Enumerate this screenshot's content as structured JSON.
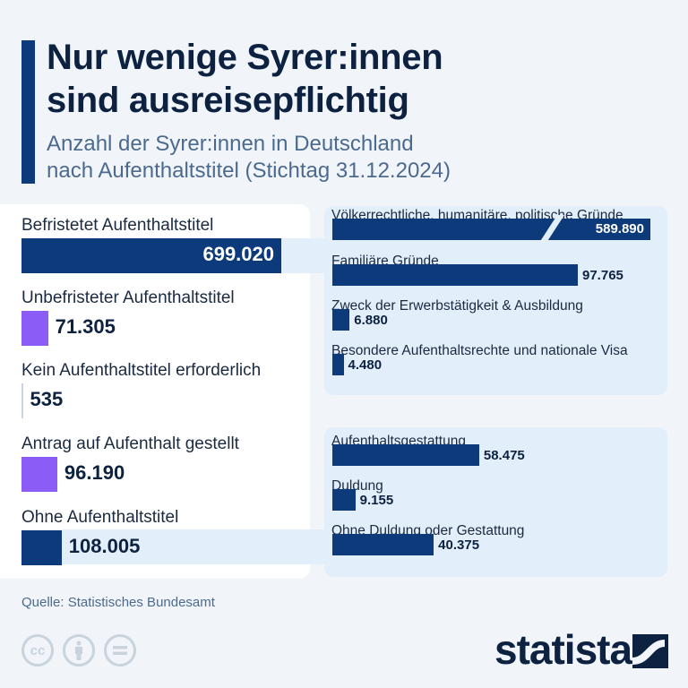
{
  "header": {
    "title_line1": "Nur wenige Syrer:innen",
    "title_line2": "sind ausreisepflichtig",
    "subtitle_line1": "Anzahl der Syrer:innen in Deutschland",
    "subtitle_line2": "nach Aufenthaltstitel (Stichtag 31.12.2024)"
  },
  "chart_data": {
    "type": "bar",
    "main": [
      {
        "label": "Befristetet Aufenthaltstitel",
        "value": 699020,
        "display": "699.020",
        "color": "#0d3a7a"
      },
      {
        "label": "Unbefristeter Aufenthaltstitel",
        "value": 71305,
        "display": "71.305",
        "color": "#8b5cf6"
      },
      {
        "label": "Kein Aufenthaltstitel erforderlich",
        "value": 535,
        "display": "535",
        "color": "#c8d4e6"
      },
      {
        "label": "Antrag auf Aufenthalt gestellt",
        "value": 96190,
        "display": "96.190",
        "color": "#8b5cf6"
      },
      {
        "label": "Ohne Aufenthaltstitel",
        "value": 108005,
        "display": "108.005",
        "color": "#0d3a7a"
      }
    ],
    "breakdown_befristet": [
      {
        "label": "Völkerrechtliche, humanitäre, politische Gründe",
        "value": 589890,
        "display": "589.890",
        "axis_break": true
      },
      {
        "label": "Familiäre Gründe",
        "value": 97765,
        "display": "97.765"
      },
      {
        "label": "Zweck der Erwerbstätigkeit & Ausbildung",
        "value": 6880,
        "display": "6.880"
      },
      {
        "label": "Besondere Aufenthaltsrechte und nationale Visa",
        "value": 4480,
        "display": "4.480"
      }
    ],
    "breakdown_ohne": [
      {
        "label": "Aufenthaltsgestattung",
        "value": 58475,
        "display": "58.475"
      },
      {
        "label": "Duldung",
        "value": 9155,
        "display": "9.155"
      },
      {
        "label": "Ohne Duldung oder Gestattung",
        "value": 40375,
        "display": "40.375"
      }
    ]
  },
  "footer": {
    "source": "Quelle: Statistisches Bundesamt",
    "logo": "statista",
    "license_icons": [
      "cc-icon",
      "by-icon",
      "nd-icon"
    ]
  }
}
